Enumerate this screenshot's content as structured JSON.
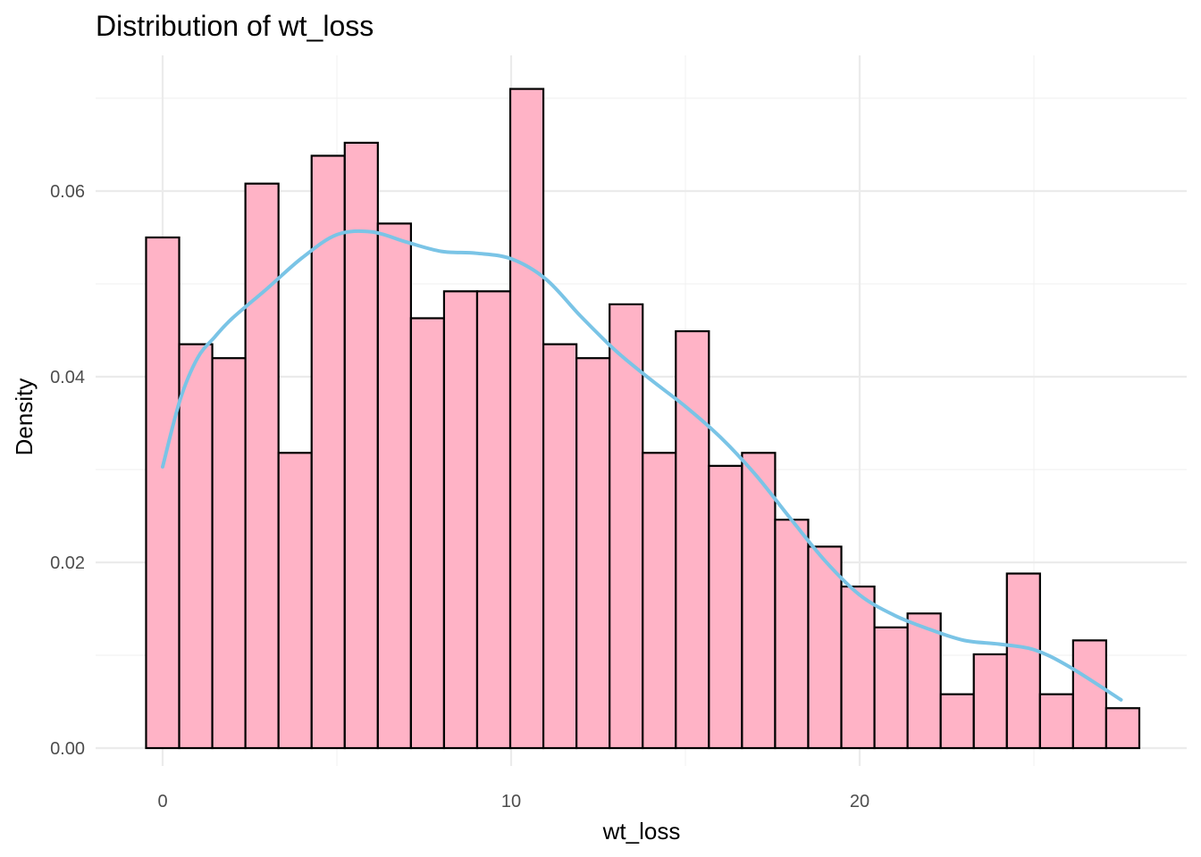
{
  "chart_data": {
    "type": "bar",
    "title": "Distribution of wt_loss",
    "xlabel": "wt_loss",
    "ylabel": "Density",
    "xlim": [
      -1,
      28.5
    ],
    "ylim": [
      0,
      0.074
    ],
    "x_ticks": [
      0,
      10,
      20
    ],
    "x_tick_labels": [
      "0",
      "10",
      "20"
    ],
    "y_ticks": [
      0,
      0.02,
      0.04,
      0.06
    ],
    "y_tick_labels": [
      "0.00",
      "0.02",
      "0.04",
      "0.06"
    ],
    "grid": true,
    "bin_width": 0.95,
    "bins": {
      "x_center": [
        0,
        0.95,
        1.9,
        2.85,
        3.8,
        4.75,
        5.7,
        6.65,
        7.6,
        8.55,
        9.5,
        10.45,
        11.4,
        12.35,
        13.3,
        14.25,
        15.2,
        16.15,
        17.1,
        18.05,
        19.0,
        19.95,
        20.9,
        21.85,
        22.8,
        23.75,
        24.7,
        25.65,
        26.6,
        27.55
      ],
      "density": [
        0.055,
        0.0435,
        0.042,
        0.0608,
        0.0318,
        0.0638,
        0.0652,
        0.0565,
        0.0463,
        0.0492,
        0.0492,
        0.071,
        0.0435,
        0.042,
        0.0478,
        0.0318,
        0.0449,
        0.0304,
        0.0318,
        0.0246,
        0.0217,
        0.0174,
        0.013,
        0.0145,
        0.0058,
        0.0101,
        0.0188,
        0.0058,
        0.0116,
        0.0043
      ]
    },
    "density_curve": {
      "x": [
        0,
        0.5,
        1,
        1.5,
        2,
        3,
        4,
        5,
        6,
        7,
        8,
        9,
        10,
        11,
        12,
        13,
        14,
        15,
        16,
        17,
        18,
        19,
        20,
        21,
        22,
        23,
        24,
        25,
        26,
        27.5
      ],
      "y": [
        0.0303,
        0.0375,
        0.042,
        0.0443,
        0.0463,
        0.0495,
        0.0528,
        0.0553,
        0.0556,
        0.0545,
        0.0535,
        0.0533,
        0.0527,
        0.0505,
        0.0465,
        0.0428,
        0.0397,
        0.0368,
        0.0335,
        0.0295,
        0.0248,
        0.0202,
        0.0165,
        0.0143,
        0.0128,
        0.0116,
        0.0112,
        0.0106,
        0.0088,
        0.0052
      ]
    },
    "colors": {
      "bar_fill": "#ffb3c6",
      "bar_outline": "#000000",
      "density_line": "#7ac4e6"
    }
  }
}
